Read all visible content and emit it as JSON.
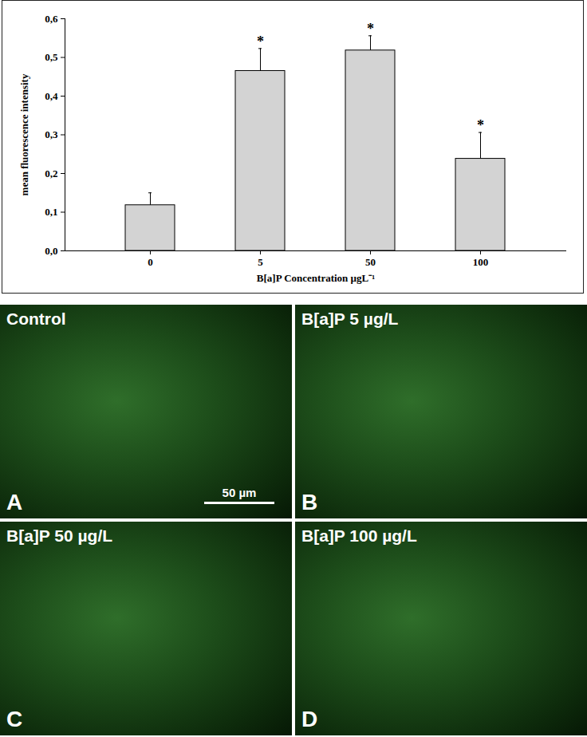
{
  "chart_data": {
    "type": "bar",
    "categories": [
      "0",
      "5",
      "50",
      "100"
    ],
    "values": [
      0.118,
      0.465,
      0.518,
      0.238
    ],
    "errors": [
      0.032,
      0.058,
      0.038,
      0.068
    ],
    "color": "#d3d3d3",
    "x_label": "B[a]P Concentration µgL⁻¹",
    "y_label": "mean fluorescence intensity",
    "ylim": [
      0,
      0.6
    ],
    "yticks": [
      {
        "value": 0,
        "label": "0,0"
      },
      {
        "value": 0.1,
        "label": "0,1"
      },
      {
        "value": 0.2,
        "label": "0,2"
      },
      {
        "value": 0.3,
        "label": "0,3"
      },
      {
        "value": 0.4,
        "label": "0,4"
      },
      {
        "value": 0.5,
        "label": "0,5"
      },
      {
        "value": 0.6,
        "label": "0,6"
      }
    ],
    "annotations": [
      {
        "category": "5",
        "text": "*"
      },
      {
        "category": "50",
        "text": "*"
      },
      {
        "category": "100",
        "text": "*"
      }
    ],
    "grid": false
  },
  "image_panels": {
    "scale_bar": "50 µm",
    "panels": [
      {
        "letter": "A",
        "label": "Control"
      },
      {
        "letter": "B",
        "label": "B[a]P 5 µg/L"
      },
      {
        "letter": "C",
        "label": "B[a]P 50 µg/L"
      },
      {
        "letter": "D",
        "label": "B[a]P 100 µg/L"
      }
    ]
  }
}
